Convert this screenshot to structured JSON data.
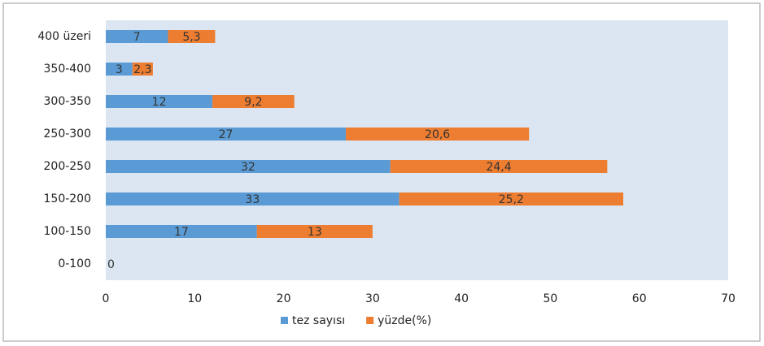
{
  "chart_data": {
    "type": "stacked-bar-horizontal",
    "categories": [
      "400 üzeri",
      "350-400",
      "300-350",
      "250-300",
      "200-250",
      "150-200",
      "100-150",
      "0-100"
    ],
    "series": [
      {
        "name": "tez sayısı",
        "color": "#5b9bd5",
        "values": [
          7,
          3,
          12,
          27,
          32,
          33,
          17,
          0
        ]
      },
      {
        "name": "yüzde(%)",
        "color": "#ed7d31",
        "values": [
          5.3,
          2.3,
          9.2,
          20.6,
          24.4,
          25.2,
          13,
          null
        ],
        "value_labels": [
          "5,3",
          "2,3",
          "9,2",
          "20,6",
          "24,4",
          "25,2",
          "13",
          null
        ]
      }
    ],
    "xlim": [
      0,
      70
    ],
    "xticks": [
      0,
      10,
      20,
      30,
      40,
      50,
      60,
      70
    ],
    "legend": "bottom"
  }
}
